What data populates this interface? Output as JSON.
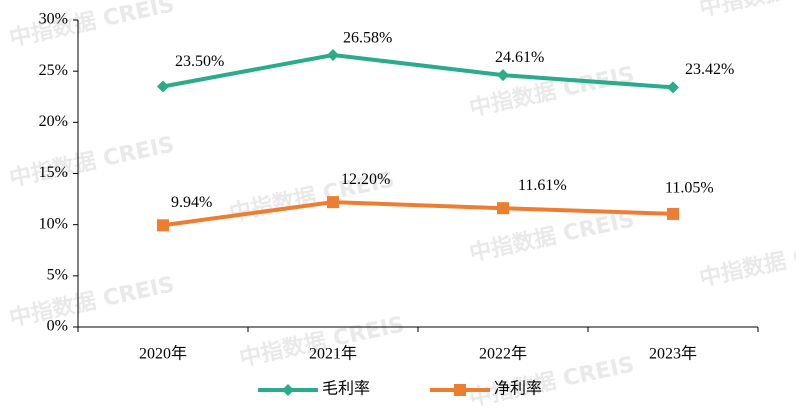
{
  "chart_data": {
    "type": "line",
    "watermark": "中指数据 CREIS",
    "categories": [
      "2020年",
      "2021年",
      "2022年",
      "2023年"
    ],
    "series": [
      {
        "name": "毛利率",
        "color": "#2aab8a",
        "marker": "diamond",
        "values": [
          23.5,
          26.58,
          24.61,
          23.42
        ],
        "value_labels": [
          "23.50%",
          "26.58%",
          "24.61%",
          "23.42%"
        ]
      },
      {
        "name": "净利率",
        "color": "#ed7d31",
        "marker": "square",
        "values": [
          9.94,
          12.2,
          11.61,
          11.05
        ],
        "value_labels": [
          "9.94%",
          "12.20%",
          "11.61%",
          "11.05%"
        ]
      }
    ],
    "ylim": [
      0,
      30
    ],
    "yticks": [
      {
        "value": 0,
        "label": "0%"
      },
      {
        "value": 5,
        "label": "5%"
      },
      {
        "value": 10,
        "label": "10%"
      },
      {
        "value": 15,
        "label": "15%"
      },
      {
        "value": 20,
        "label": "20%"
      },
      {
        "value": 25,
        "label": "25%"
      },
      {
        "value": 30,
        "label": "30%"
      }
    ],
    "grid": false,
    "legend": "bottom"
  }
}
